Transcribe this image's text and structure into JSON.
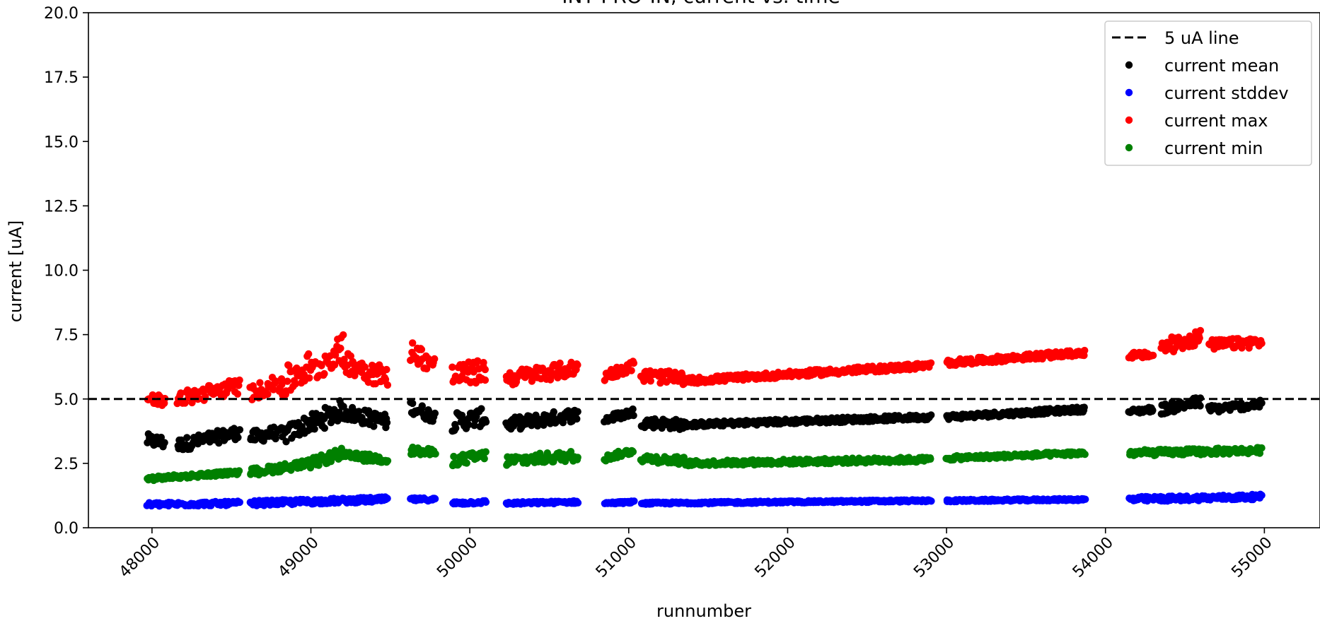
{
  "chart_data": {
    "type": "scatter",
    "title": "INT PRO-IN, current vs. time",
    "xlabel": "runnumber",
    "ylabel": "current [uA]",
    "xlim": [
      47600,
      55350
    ],
    "ylim": [
      0,
      20
    ],
    "x_ticks": [
      48000,
      49000,
      50000,
      51000,
      52000,
      53000,
      54000,
      55000
    ],
    "y_ticks": [
      0.0,
      2.5,
      5.0,
      7.5,
      10.0,
      12.5,
      15.0,
      17.5,
      20.0
    ],
    "x_tick_labels": [
      "48000",
      "49000",
      "50000",
      "51000",
      "52000",
      "53000",
      "54000",
      "55000"
    ],
    "y_tick_labels": [
      "0.0",
      "2.5",
      "5.0",
      "7.5",
      "10.0",
      "12.5",
      "15.0",
      "17.5",
      "20.0"
    ],
    "grid": false,
    "legend_position": "top-right",
    "hline": {
      "name": "5 uA line",
      "y": 5.0,
      "color": "#000000",
      "style": "dashed"
    },
    "series": [
      {
        "name": "current mean",
        "color": "#000000",
        "segments": [
          {
            "x0": 47970,
            "x1": 48080,
            "y0": 3.4,
            "y1": 3.3,
            "jitter": 0.25
          },
          {
            "x0": 48160,
            "x1": 48550,
            "y0": 3.2,
            "y1": 3.7,
            "jitter": 0.25
          },
          {
            "x0": 48620,
            "x1": 48780,
            "y0": 3.5,
            "y1": 3.7,
            "jitter": 0.25
          },
          {
            "x0": 48800,
            "x1": 49000,
            "y0": 3.5,
            "y1": 4.1,
            "jitter": 0.35
          },
          {
            "x0": 49000,
            "x1": 49200,
            "y0": 4.0,
            "y1": 4.6,
            "jitter": 0.4
          },
          {
            "x0": 49200,
            "x1": 49480,
            "y0": 4.5,
            "y1": 4.1,
            "jitter": 0.3
          },
          {
            "x0": 49630,
            "x1": 49780,
            "y0": 4.7,
            "y1": 4.3,
            "jitter": 0.25
          },
          {
            "x0": 49890,
            "x1": 50100,
            "y0": 4.1,
            "y1": 4.3,
            "jitter": 0.35
          },
          {
            "x0": 50230,
            "x1": 50680,
            "y0": 4.0,
            "y1": 4.4,
            "jitter": 0.25
          },
          {
            "x0": 50850,
            "x1": 51030,
            "y0": 4.2,
            "y1": 4.5,
            "jitter": 0.15
          },
          {
            "x0": 51080,
            "x1": 51350,
            "y0": 4.1,
            "y1": 4.0,
            "jitter": 0.2
          },
          {
            "x0": 51350,
            "x1": 52900,
            "y0": 4.0,
            "y1": 4.3,
            "jitter": 0.1
          },
          {
            "x0": 53000,
            "x1": 53870,
            "y0": 4.3,
            "y1": 4.6,
            "jitter": 0.1
          },
          {
            "x0": 54150,
            "x1": 54300,
            "y0": 4.5,
            "y1": 4.6,
            "jitter": 0.1
          },
          {
            "x0": 54350,
            "x1": 54600,
            "y0": 4.6,
            "y1": 4.9,
            "jitter": 0.2
          },
          {
            "x0": 54650,
            "x1": 54980,
            "y0": 4.6,
            "y1": 4.8,
            "jitter": 0.15
          }
        ]
      },
      {
        "name": "current stddev",
        "color": "#0000ff",
        "segments": [
          {
            "x0": 47970,
            "x1": 48550,
            "y0": 0.9,
            "y1": 0.95,
            "jitter": 0.08
          },
          {
            "x0": 48620,
            "x1": 49480,
            "y0": 0.95,
            "y1": 1.1,
            "jitter": 0.1
          },
          {
            "x0": 49630,
            "x1": 49780,
            "y0": 1.1,
            "y1": 1.1,
            "jitter": 0.06
          },
          {
            "x0": 49890,
            "x1": 50100,
            "y0": 0.95,
            "y1": 1.0,
            "jitter": 0.06
          },
          {
            "x0": 50230,
            "x1": 50680,
            "y0": 0.95,
            "y1": 1.0,
            "jitter": 0.05
          },
          {
            "x0": 50850,
            "x1": 51030,
            "y0": 0.95,
            "y1": 1.0,
            "jitter": 0.04
          },
          {
            "x0": 51080,
            "x1": 52900,
            "y0": 0.95,
            "y1": 1.05,
            "jitter": 0.04
          },
          {
            "x0": 53000,
            "x1": 53870,
            "y0": 1.05,
            "y1": 1.1,
            "jitter": 0.04
          },
          {
            "x0": 54150,
            "x1": 54980,
            "y0": 1.1,
            "y1": 1.2,
            "jitter": 0.1
          }
        ]
      },
      {
        "name": "current max",
        "color": "#ff0000",
        "segments": [
          {
            "x0": 47970,
            "x1": 48080,
            "y0": 5.1,
            "y1": 4.9,
            "jitter": 0.2
          },
          {
            "x0": 48160,
            "x1": 48550,
            "y0": 5.0,
            "y1": 5.5,
            "jitter": 0.3
          },
          {
            "x0": 48620,
            "x1": 48780,
            "y0": 5.2,
            "y1": 5.6,
            "jitter": 0.3
          },
          {
            "x0": 48800,
            "x1": 49000,
            "y0": 5.5,
            "y1": 6.3,
            "jitter": 0.6
          },
          {
            "x0": 49000,
            "x1": 49200,
            "y0": 6.0,
            "y1": 7.0,
            "jitter": 0.5
          },
          {
            "x0": 49200,
            "x1": 49480,
            "y0": 6.5,
            "y1": 5.8,
            "jitter": 0.45
          },
          {
            "x0": 49630,
            "x1": 49780,
            "y0": 6.9,
            "y1": 6.3,
            "jitter": 0.4
          },
          {
            "x0": 49890,
            "x1": 50100,
            "y0": 5.9,
            "y1": 6.1,
            "jitter": 0.45
          },
          {
            "x0": 50230,
            "x1": 50680,
            "y0": 5.8,
            "y1": 6.2,
            "jitter": 0.3
          },
          {
            "x0": 50850,
            "x1": 51030,
            "y0": 5.9,
            "y1": 6.3,
            "jitter": 0.2
          },
          {
            "x0": 51080,
            "x1": 51350,
            "y0": 5.9,
            "y1": 5.8,
            "jitter": 0.25
          },
          {
            "x0": 51350,
            "x1": 52900,
            "y0": 5.7,
            "y1": 6.3,
            "jitter": 0.12
          },
          {
            "x0": 53000,
            "x1": 53870,
            "y0": 6.4,
            "y1": 6.8,
            "jitter": 0.12
          },
          {
            "x0": 54150,
            "x1": 54300,
            "y0": 6.7,
            "y1": 6.7,
            "jitter": 0.12
          },
          {
            "x0": 54350,
            "x1": 54600,
            "y0": 7.0,
            "y1": 7.4,
            "jitter": 0.3
          },
          {
            "x0": 54650,
            "x1": 54980,
            "y0": 7.1,
            "y1": 7.2,
            "jitter": 0.2
          }
        ]
      },
      {
        "name": "current min",
        "color": "#008000",
        "segments": [
          {
            "x0": 47970,
            "x1": 48550,
            "y0": 1.9,
            "y1": 2.15,
            "jitter": 0.08
          },
          {
            "x0": 48620,
            "x1": 49000,
            "y0": 2.15,
            "y1": 2.5,
            "jitter": 0.15
          },
          {
            "x0": 49000,
            "x1": 49200,
            "y0": 2.5,
            "y1": 2.9,
            "jitter": 0.2
          },
          {
            "x0": 49200,
            "x1": 49480,
            "y0": 2.8,
            "y1": 2.65,
            "jitter": 0.15
          },
          {
            "x0": 49630,
            "x1": 49780,
            "y0": 3.0,
            "y1": 2.9,
            "jitter": 0.15
          },
          {
            "x0": 49890,
            "x1": 50100,
            "y0": 2.6,
            "y1": 2.8,
            "jitter": 0.2
          },
          {
            "x0": 50230,
            "x1": 50680,
            "y0": 2.6,
            "y1": 2.8,
            "jitter": 0.2
          },
          {
            "x0": 50850,
            "x1": 51030,
            "y0": 2.7,
            "y1": 3.0,
            "jitter": 0.12
          },
          {
            "x0": 51080,
            "x1": 51350,
            "y0": 2.7,
            "y1": 2.6,
            "jitter": 0.15
          },
          {
            "x0": 51350,
            "x1": 52900,
            "y0": 2.5,
            "y1": 2.65,
            "jitter": 0.1
          },
          {
            "x0": 53000,
            "x1": 53870,
            "y0": 2.7,
            "y1": 2.9,
            "jitter": 0.08
          },
          {
            "x0": 54150,
            "x1": 54980,
            "y0": 2.9,
            "y1": 3.0,
            "jitter": 0.12
          }
        ]
      }
    ]
  }
}
